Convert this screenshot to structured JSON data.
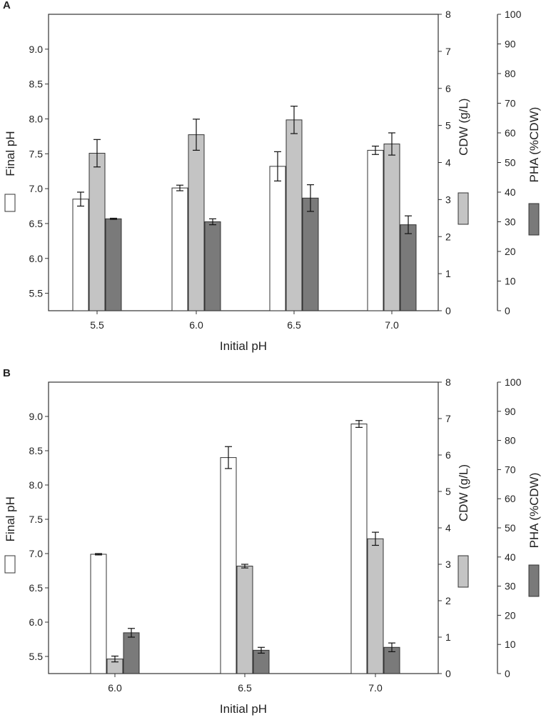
{
  "colors": {
    "final_ph": "#ffffff",
    "cdw": "#c4c4c4",
    "pha": "#7a7a7a",
    "axis": "#333333"
  },
  "chart_data": [
    {
      "type": "bar",
      "panel_label": "A",
      "xlabel": "Initial pH",
      "categories": [
        "5.5",
        "6.0",
        "6.5",
        "7.0"
      ],
      "axes": {
        "final_ph": {
          "label": "Final pH",
          "ylim": [
            5.25,
            9.5
          ],
          "ticks": [
            "5.5",
            "6.0",
            "6.5",
            "7.0",
            "7.5",
            "8.0",
            "8.5",
            "9.0"
          ]
        },
        "cdw": {
          "label": "CDW (g/L)",
          "ylim": [
            0,
            8
          ],
          "ticks": [
            "0",
            "1",
            "2",
            "3",
            "4",
            "5",
            "6",
            "7",
            "8"
          ]
        },
        "pha": {
          "label": "PHA (%CDW)",
          "ylim": [
            0,
            100
          ],
          "ticks": [
            "0",
            "10",
            "20",
            "30",
            "40",
            "50",
            "60",
            "70",
            "80",
            "90",
            "100"
          ]
        }
      },
      "series": [
        {
          "name": "Final pH",
          "axis": "final_ph",
          "values": [
            6.85,
            7.01,
            7.32,
            7.55
          ],
          "errors": [
            0.1,
            0.04,
            0.21,
            0.06
          ]
        },
        {
          "name": "CDW (g/L)",
          "axis": "cdw",
          "values": [
            4.25,
            4.75,
            5.15,
            4.5
          ],
          "errors": [
            0.37,
            0.42,
            0.37,
            0.3
          ]
        },
        {
          "name": "PHA (%CDW)",
          "axis": "pha",
          "values": [
            31,
            30,
            38,
            29
          ],
          "errors": [
            0.2,
            1.0,
            4.5,
            3.0
          ]
        }
      ]
    },
    {
      "type": "bar",
      "panel_label": "B",
      "xlabel": "Initial pH",
      "categories": [
        "6.0",
        "6.5",
        "7.0"
      ],
      "axes": {
        "final_ph": {
          "label": "Final pH",
          "ylim": [
            5.25,
            9.5
          ],
          "ticks": [
            "5.5",
            "6.0",
            "6.5",
            "7.0",
            "7.5",
            "8.0",
            "8.5",
            "9.0"
          ]
        },
        "cdw": {
          "label": "CDW (g/L)",
          "ylim": [
            0,
            8
          ],
          "ticks": [
            "0",
            "1",
            "2",
            "3",
            "4",
            "5",
            "6",
            "7",
            "8"
          ]
        },
        "pha": {
          "label": "PHA (%CDW)",
          "ylim": [
            0,
            100
          ],
          "ticks": [
            "0",
            "10",
            "20",
            "30",
            "40",
            "50",
            "60",
            "70",
            "80",
            "90",
            "100"
          ]
        }
      },
      "series": [
        {
          "name": "Final pH",
          "axis": "final_ph",
          "values": [
            6.99,
            8.4,
            8.89
          ],
          "errors": [
            0.01,
            0.16,
            0.05
          ]
        },
        {
          "name": "CDW (g/L)",
          "axis": "cdw",
          "values": [
            0.4,
            2.95,
            3.7
          ],
          "errors": [
            0.08,
            0.05,
            0.18
          ]
        },
        {
          "name": "PHA (%CDW)",
          "axis": "pha",
          "values": [
            14,
            8,
            9
          ],
          "errors": [
            1.5,
            1.0,
            1.5
          ]
        }
      ]
    }
  ]
}
